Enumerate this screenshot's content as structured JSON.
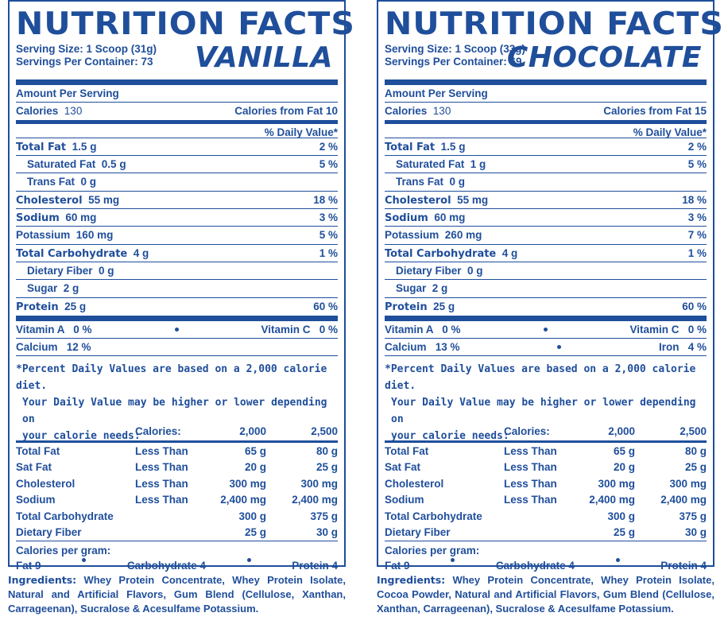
{
  "panels": [
    {
      "title": "NUTRITION FACTS",
      "flavor": "VANILLA",
      "serving_size": "Serving Size: 1 Scoop (31g)",
      "servings_per_container": "Servings Per Container: 73",
      "amount_per_serving": "Amount Per Serving",
      "calories_label": "Calories",
      "calories_value": "130",
      "calories_from_fat": "Calories from Fat 10",
      "daily_value_header": "% Daily Value*",
      "nutrients": [
        {
          "label": "Total Fat",
          "amount": "1.5 g",
          "dv": "2 %"
        },
        {
          "label": "Saturated Fat",
          "amount": "0.5 g",
          "dv": "5 %"
        },
        {
          "label": "Trans Fat",
          "amount": "0 g",
          "dv": ""
        },
        {
          "label": "Cholesterol",
          "amount": "55 mg",
          "dv": "18 %"
        },
        {
          "label": "Sodium",
          "amount": "60 mg",
          "dv": "3 %"
        },
        {
          "label": "Potassium",
          "amount": "160 mg",
          "dv": "5 %"
        },
        {
          "label": "Total Carbohydrate",
          "amount": "4 g",
          "dv": "1 %"
        },
        {
          "label": "Dietary Fiber",
          "amount": "0 g",
          "dv": ""
        },
        {
          "label": "Sugar",
          "amount": "2 g",
          "dv": ""
        },
        {
          "label": "Protein",
          "amount": "25 g",
          "dv": "60 %"
        }
      ],
      "vitamins": {
        "row1_left": "Vitamin A   0 %",
        "row1_right": "Vitamin C   0 %",
        "row2_left": "Calcium   12 %",
        "row2_right": ""
      },
      "footnote": [
        "*Percent Daily Values are based on a 2,000 calorie diet.",
        "Your Daily Value may be higher or lower depending on",
        "your calorie needs:"
      ],
      "dv_header": [
        "",
        "Calories:",
        "2,000",
        "2,500"
      ],
      "dv_rows": [
        [
          "Total Fat",
          "Less Than",
          "65 g",
          "80 g"
        ],
        [
          "Sat Fat",
          "Less Than",
          "20 g",
          "25 g"
        ],
        [
          "Cholesterol",
          "Less Than",
          "300 mg",
          "300 mg"
        ],
        [
          "Sodium",
          "Less Than",
          "2,400 mg",
          "2,400 mg"
        ],
        [
          "Total Carbohydrate",
          "",
          "300 g",
          "375 g"
        ],
        [
          "Dietary Fiber",
          "",
          "25 g",
          "30 g"
        ]
      ],
      "cal_per_gram_label": "Calories per gram:",
      "cal_per_gram": [
        "Fat 9",
        "Carbohydrate 4",
        "Protein 4"
      ],
      "ingredients_label": "Ingredients:",
      "ingredients": "Whey Protein Concentrate, Whey Protein Isolate, Natural and Artificial Flavors, Gum Blend (Cellulose, Xanthan, Carrageenan), Sucralose & Acesulfame Potassium."
    },
    {
      "title": "NUTRITION FACTS",
      "flavor": "CHOCOLATE",
      "serving_size": "Serving Size: 1 Scoop (33g)",
      "servings_per_container": "Servings Per Container: 69",
      "amount_per_serving": "Amount Per Serving",
      "calories_label": "Calories",
      "calories_value": "130",
      "calories_from_fat": "Calories from Fat 15",
      "daily_value_header": "% Daily Value*",
      "nutrients": [
        {
          "label": "Total Fat",
          "amount": "1.5 g",
          "dv": "2 %"
        },
        {
          "label": "Saturated Fat",
          "amount": "1 g",
          "dv": "5 %"
        },
        {
          "label": "Trans Fat",
          "amount": "0 g",
          "dv": ""
        },
        {
          "label": "Cholesterol",
          "amount": "55 mg",
          "dv": "18 %"
        },
        {
          "label": "Sodium",
          "amount": "60 mg",
          "dv": "3 %"
        },
        {
          "label": "Potassium",
          "amount": "260 mg",
          "dv": "7 %"
        },
        {
          "label": "Total Carbohydrate",
          "amount": "4 g",
          "dv": "1 %"
        },
        {
          "label": "Dietary Fiber",
          "amount": "0 g",
          "dv": ""
        },
        {
          "label": "Sugar",
          "amount": "2 g",
          "dv": ""
        },
        {
          "label": "Protein",
          "amount": "25 g",
          "dv": "60 %"
        }
      ],
      "vitamins": {
        "row1_left": "Vitamin A   0 %",
        "row1_right": "Vitamin C   0 %",
        "row2_left": "Calcium   13 %",
        "row2_right": "Iron   4 %"
      },
      "footnote": [
        "*Percent Daily Values are based on a 2,000 calorie diet.",
        "Your Daily Value may be higher or lower depending on",
        "your calorie needs:"
      ],
      "dv_header": [
        "",
        "Calories:",
        "2,000",
        "2,500"
      ],
      "dv_rows": [
        [
          "Total Fat",
          "Less Than",
          "65 g",
          "80 g"
        ],
        [
          "Sat Fat",
          "Less Than",
          "20 g",
          "25 g"
        ],
        [
          "Cholesterol",
          "Less Than",
          "300 mg",
          "300 mg"
        ],
        [
          "Sodium",
          "Less Than",
          "2,400 mg",
          "2,400 mg"
        ],
        [
          "Total Carbohydrate",
          "",
          "300 g",
          "375 g"
        ],
        [
          "Dietary Fiber",
          "",
          "25 g",
          "30 g"
        ]
      ],
      "cal_per_gram_label": "Calories per gram:",
      "cal_per_gram": [
        "Fat 9",
        "Carbohydrate 4",
        "Protein 4"
      ],
      "ingredients_label": "Ingredients:",
      "ingredients": "Whey Protein Concentrate, Whey Protein Isolate, Cocoa Powder, Natural and Artificial Flavors, Gum Blend (Cellulose, Xanthan, Carrageenan), Sucralose & Acesulfame Potassium."
    }
  ],
  "colors": {
    "ink": "#1f4e9b"
  }
}
